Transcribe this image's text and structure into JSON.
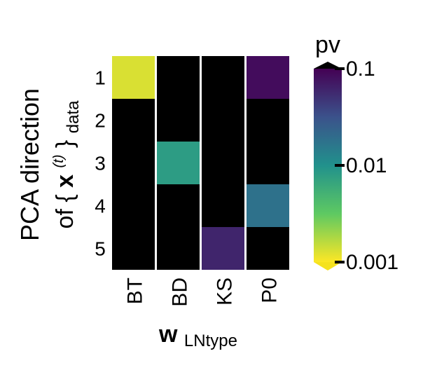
{
  "chart_data": {
    "type": "heatmap",
    "columns": [
      "BT",
      "BD",
      "KS",
      "P0"
    ],
    "rows": [
      "1",
      "2",
      "3",
      "4",
      "5"
    ],
    "ylabel_line1": "PCA direction",
    "ylabel_line2": {
      "prefix": "of {",
      "bold": "x",
      "superscript": "(t)",
      "suffix": "}",
      "subscript": "data"
    },
    "xlabel": {
      "bold": "w",
      "subscript": "LNtype"
    },
    "colorbar": {
      "title": "pv",
      "scale": "log",
      "range": [
        0.001,
        0.1
      ],
      "ticks": [
        0.1,
        0.01,
        0.001
      ],
      "tick_labels": [
        "0.1",
        "0.01",
        "0.001"
      ],
      "colormap": "viridis (reversed: low pv = yellow)",
      "over_color": "#000000",
      "under_color": "#f5e21f",
      "extend": "both"
    },
    "cells": [
      {
        "col": "BT",
        "row": "1",
        "pv": 0.0013
      },
      {
        "col": "BD",
        "row": "3",
        "pv": 0.008
      },
      {
        "col": "KS",
        "row": "5",
        "pv": 0.06
      },
      {
        "col": "P0",
        "row": "1",
        "pv": 0.085
      },
      {
        "col": "P0",
        "row": "4",
        "pv": 0.018
      }
    ],
    "default_cell": "pv > 0.1 (shown black)",
    "grid": false
  }
}
